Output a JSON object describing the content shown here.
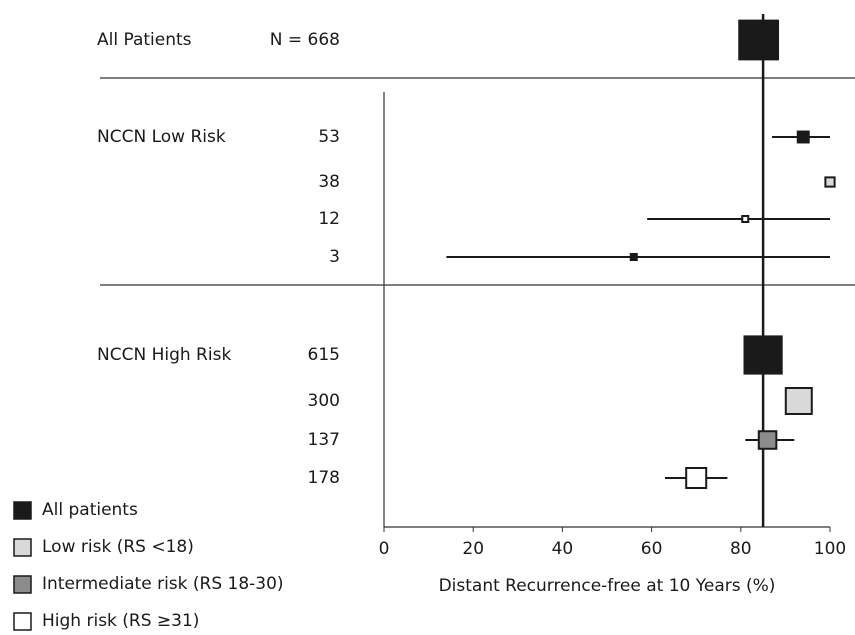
{
  "chart_data": {
    "type": "forest",
    "xlabel": "Distant Recurrence-free at 10 Years (%)",
    "xlim": [
      0,
      100
    ],
    "xticks": [
      0,
      20,
      40,
      60,
      80,
      100
    ],
    "reference": 85,
    "rows": [
      {
        "label": "All Patients",
        "n": 668,
        "n_label": "N = 668",
        "value": 84,
        "ci_low": null,
        "ci_high": null,
        "color": "#1a1a1a"
      },
      {
        "label": "NCCN Low Risk",
        "n": 53,
        "value": 94,
        "ci_low": 87,
        "ci_high": 100,
        "color": "#1a1a1a"
      },
      {
        "label": null,
        "n": 38,
        "value": 100,
        "ci_low": null,
        "ci_high": null,
        "color": "#d9d9d9"
      },
      {
        "label": null,
        "n": 12,
        "value": 81,
        "ci_low": 59,
        "ci_high": 100,
        "color": "#ffffff"
      },
      {
        "label": null,
        "n": 3,
        "value": 56,
        "ci_low": 14,
        "ci_high": 100,
        "color": "#1a1a1a"
      },
      {
        "label": "NCCN High Risk",
        "n": 615,
        "value": 85,
        "ci_low": null,
        "ci_high": null,
        "color": "#1a1a1a"
      },
      {
        "label": null,
        "n": 300,
        "value": 93,
        "ci_low": null,
        "ci_high": null,
        "color": "#d9d9d9"
      },
      {
        "label": null,
        "n": 137,
        "value": 86,
        "ci_low": 81,
        "ci_high": 92,
        "color": "#8c8c8c"
      },
      {
        "label": null,
        "n": 178,
        "value": 70,
        "ci_low": 63,
        "ci_high": 77,
        "color": "#ffffff"
      }
    ],
    "legend": [
      {
        "name": "All patients",
        "color": "#1a1a1a"
      },
      {
        "name": "Low risk (RS <18)",
        "color": "#d9d9d9"
      },
      {
        "name": "Intermediate risk (RS 18-30)",
        "color": "#8c8c8c"
      },
      {
        "name": "High risk (RS ≥31)",
        "color": "#ffffff"
      }
    ]
  }
}
